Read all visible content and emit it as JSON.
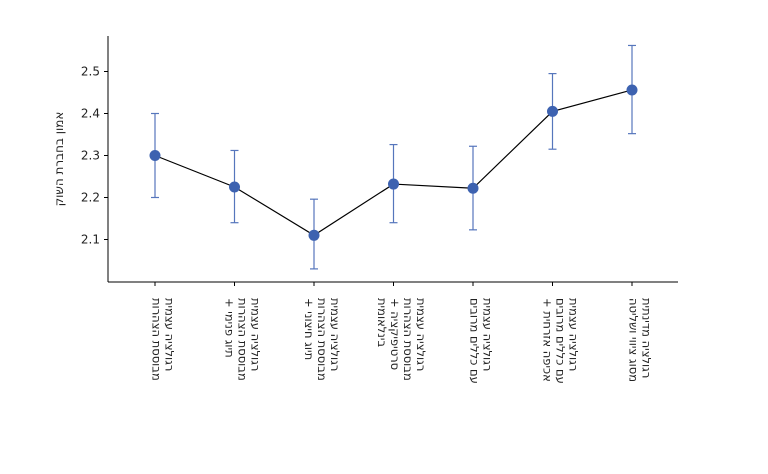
{
  "chart_data": {
    "type": "line",
    "title": "",
    "xlabel": "",
    "ylabel": "אמון בחברת השוק",
    "ylim": [
      2.0,
      2.6
    ],
    "yticks": [
      2.1,
      2.2,
      2.3,
      2.4,
      2.5
    ],
    "grid": false,
    "categories": [
      [
        "רגולציה עצמית",
        "מבוססת הצהרות"
      ],
      [
        "רגולציה עצמית",
        "מבוססת הצהרות",
        "+ תיוג פנימי"
      ],
      [
        "רגולציה עצמית",
        "מבוססת הצהרות",
        "+ תיוג חיצוני"
      ],
      [
        "רגולציה עצמית",
        "מבוססת הצהרות",
        "+ סרטיפיקציה",
        "בינלאומית"
      ],
      [
        "רגולציה עצמית",
        "עם כללים מרובים"
      ],
      [
        "רגולציה עצמית",
        "עם כללים מרובים",
        "+ אכיפה אזרחית"
      ],
      [
        "רגולציה מדינתית",
        "מסוג ציווי ושליטה"
      ]
    ],
    "values": [
      2.3,
      2.225,
      2.11,
      2.232,
      2.222,
      2.405,
      2.456
    ],
    "error_low": [
      2.2,
      2.14,
      2.03,
      2.14,
      2.123,
      2.315,
      2.352
    ],
    "error_high": [
      2.4,
      2.312,
      2.196,
      2.326,
      2.322,
      2.495,
      2.562
    ],
    "colors": {
      "marker": "#3d62b0",
      "errorbar": "#5676bc",
      "line": "#000000",
      "axis": "#000000"
    }
  }
}
